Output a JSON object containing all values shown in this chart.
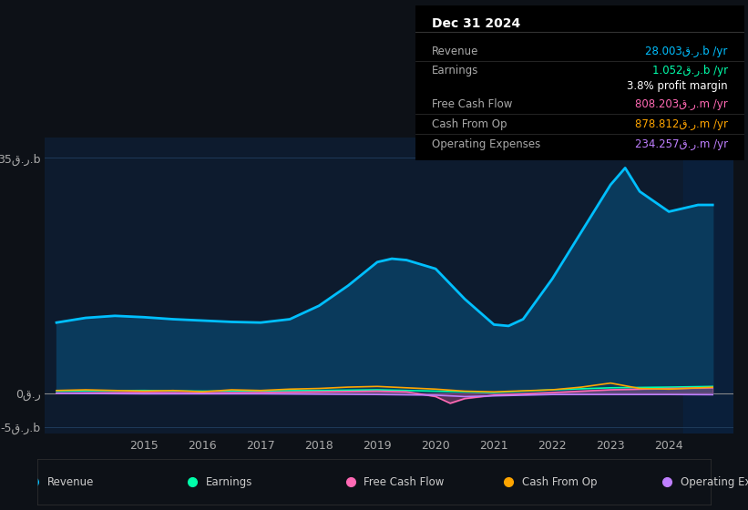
{
  "bg_color": "#0d1117",
  "plot_bg_color": "#0d1b2e",
  "title_box": {
    "date": "Dec 31 2024",
    "rows": [
      {
        "label": "Revenue",
        "value": "28.003ق.ر.b /yr",
        "color": "#00bfff"
      },
      {
        "label": "Earnings",
        "value": "1.052ق.ر.b /yr",
        "color": "#00ffaa"
      },
      {
        "label": "",
        "value": "3.8% profit margin",
        "color": "#ffffff"
      },
      {
        "label": "Free Cash Flow",
        "value": "808.203ق.ر.m /yr",
        "color": "#ff69b4"
      },
      {
        "label": "Cash From Op",
        "value": "878.812ق.ر.m /yr",
        "color": "#ffa500"
      },
      {
        "label": "Operating Expenses",
        "value": "234.257ق.ر.m /yr",
        "color": "#bf7fff"
      }
    ]
  },
  "ylim": [
    -6,
    38
  ],
  "yticks": [
    -5,
    0,
    35
  ],
  "ytick_labels": [
    "-5ق.ر.b",
    "0ق.ر",
    "35ق.ر.b"
  ],
  "xlabel_years": [
    2015,
    2016,
    2017,
    2018,
    2019,
    2020,
    2021,
    2022,
    2023,
    2024
  ],
  "revenue": {
    "x": [
      2013.5,
      2014.0,
      2014.5,
      2015.0,
      2015.5,
      2016.0,
      2016.5,
      2017.0,
      2017.5,
      2018.0,
      2018.5,
      2019.0,
      2019.25,
      2019.5,
      2020.0,
      2020.5,
      2021.0,
      2021.25,
      2021.5,
      2022.0,
      2022.5,
      2023.0,
      2023.25,
      2023.5,
      2024.0,
      2024.5,
      2024.75
    ],
    "y": [
      10.5,
      11.2,
      11.5,
      11.3,
      11.0,
      10.8,
      10.6,
      10.5,
      11.0,
      13.0,
      16.0,
      19.5,
      20.0,
      19.8,
      18.5,
      14.0,
      10.2,
      10.0,
      11.0,
      17.0,
      24.0,
      31.0,
      33.5,
      30.0,
      27.0,
      28.0,
      28.0
    ],
    "color": "#00bfff",
    "fill_color": "#0a3a5c"
  },
  "earnings": {
    "x": [
      2013.5,
      2014.0,
      2015.0,
      2016.0,
      2017.0,
      2018.0,
      2019.0,
      2020.0,
      2020.5,
      2021.0,
      2022.0,
      2023.0,
      2024.0,
      2024.75
    ],
    "y": [
      0.3,
      0.35,
      0.4,
      0.3,
      0.35,
      0.4,
      0.5,
      0.3,
      0.2,
      0.1,
      0.5,
      0.8,
      0.9,
      1.0
    ],
    "color": "#00ffaa"
  },
  "free_cash_flow": {
    "x": [
      2013.5,
      2014.0,
      2015.0,
      2016.0,
      2017.0,
      2018.0,
      2019.0,
      2019.5,
      2020.0,
      2020.25,
      2020.5,
      2021.0,
      2022.0,
      2023.0,
      2024.0,
      2024.75
    ],
    "y": [
      0.0,
      0.05,
      0.1,
      0.05,
      0.1,
      0.2,
      0.3,
      0.2,
      -0.5,
      -1.5,
      -0.8,
      -0.3,
      0.1,
      0.5,
      0.7,
      0.8
    ],
    "color": "#ff69b4"
  },
  "cash_from_op": {
    "x": [
      2013.5,
      2014.0,
      2015.0,
      2015.5,
      2016.0,
      2016.5,
      2017.0,
      2017.5,
      2018.0,
      2018.5,
      2019.0,
      2019.5,
      2020.0,
      2020.5,
      2021.0,
      2022.0,
      2022.5,
      2023.0,
      2023.5,
      2024.0,
      2024.75
    ],
    "y": [
      0.4,
      0.5,
      0.3,
      0.4,
      0.2,
      0.5,
      0.4,
      0.6,
      0.7,
      0.9,
      1.0,
      0.8,
      0.6,
      0.3,
      0.2,
      0.5,
      0.9,
      1.5,
      0.7,
      0.6,
      0.88
    ],
    "color": "#ffa500"
  },
  "operating_expenses": {
    "x": [
      2013.5,
      2014.0,
      2015.0,
      2016.0,
      2017.0,
      2018.0,
      2019.0,
      2020.0,
      2020.5,
      2021.0,
      2022.0,
      2023.0,
      2024.0,
      2024.75
    ],
    "y": [
      0.0,
      -0.05,
      -0.1,
      -0.1,
      -0.1,
      -0.15,
      -0.2,
      -0.3,
      -0.5,
      -0.4,
      -0.2,
      -0.2,
      -0.2,
      -0.23
    ],
    "color": "#bf7fff"
  },
  "legend": [
    {
      "label": "Revenue",
      "color": "#00bfff"
    },
    {
      "label": "Earnings",
      "color": "#00ffaa"
    },
    {
      "label": "Free Cash Flow",
      "color": "#ff69b4"
    },
    {
      "label": "Cash From Op",
      "color": "#ffa500"
    },
    {
      "label": "Operating Expenses",
      "color": "#bf7fff"
    }
  ],
  "grid_color": "#1e3a5a",
  "zero_line_color": "#888888"
}
